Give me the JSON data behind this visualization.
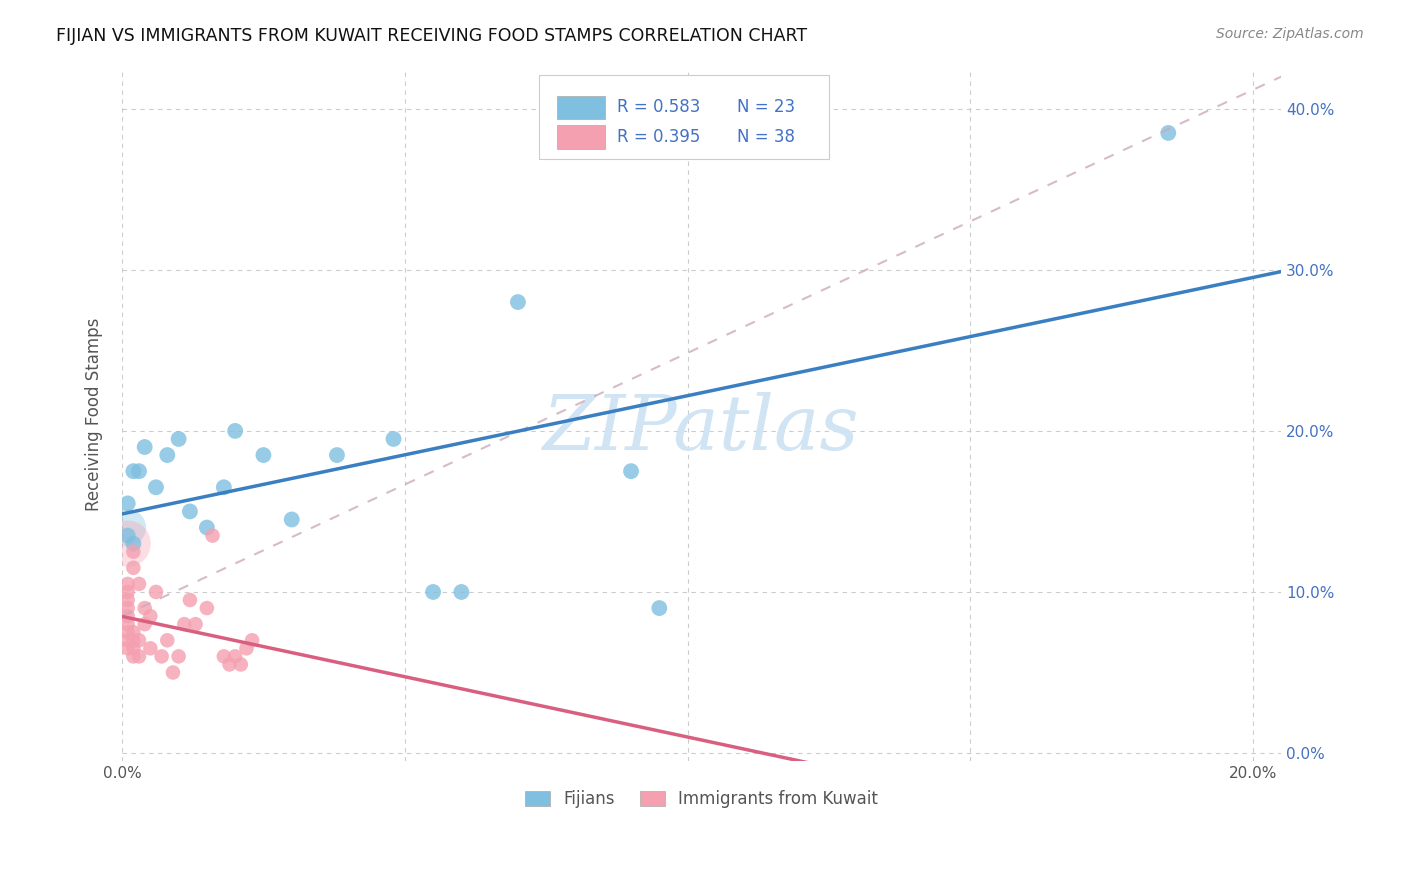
{
  "title": "FIJIAN VS IMMIGRANTS FROM KUWAIT RECEIVING FOOD STAMPS CORRELATION CHART",
  "source": "Source: ZipAtlas.com",
  "ylabel": "Receiving Food Stamps",
  "xlim": [
    0.0,
    0.205
  ],
  "ylim": [
    -0.005,
    0.425
  ],
  "xticks": [
    0.0,
    0.05,
    0.1,
    0.15,
    0.2
  ],
  "yticks": [
    0.0,
    0.1,
    0.2,
    0.3,
    0.4
  ],
  "xticklabels": [
    "0.0%",
    "",
    "",
    "",
    "20.0%"
  ],
  "yticklabels_right": [
    "0.0%",
    "10.0%",
    "20.0%",
    "30.0%",
    "40.0%"
  ],
  "fijian_color": "#7fbfdf",
  "kuwait_color": "#f4a0b0",
  "fijian_line_color": "#3a7fc1",
  "kuwait_line_color": "#d95f7f",
  "gray_dash_color": "#ccaabb",
  "watermark_color": "#d0e4f4",
  "legend_r1": "R = 0.583",
  "legend_n1": "N = 23",
  "legend_r2": "R = 0.395",
  "legend_n2": "N = 38",
  "legend_text_color": "#4472c4",
  "fijian_label": "Fijians",
  "kuwait_label": "Immigrants from Kuwait",
  "fijian_x": [
    0.001,
    0.001,
    0.002,
    0.002,
    0.003,
    0.004,
    0.006,
    0.008,
    0.01,
    0.012,
    0.015,
    0.018,
    0.02,
    0.025,
    0.03,
    0.038,
    0.048,
    0.055,
    0.06,
    0.07,
    0.09,
    0.095,
    0.185
  ],
  "fijian_y": [
    0.135,
    0.155,
    0.13,
    0.175,
    0.175,
    0.19,
    0.165,
    0.185,
    0.195,
    0.15,
    0.14,
    0.165,
    0.2,
    0.185,
    0.145,
    0.185,
    0.195,
    0.1,
    0.1,
    0.28,
    0.175,
    0.09,
    0.385
  ],
  "kuwait_x": [
    0.001,
    0.001,
    0.001,
    0.001,
    0.001,
    0.001,
    0.001,
    0.001,
    0.001,
    0.002,
    0.002,
    0.002,
    0.002,
    0.002,
    0.002,
    0.003,
    0.003,
    0.003,
    0.004,
    0.004,
    0.005,
    0.005,
    0.006,
    0.007,
    0.008,
    0.009,
    0.01,
    0.011,
    0.012,
    0.013,
    0.015,
    0.016,
    0.018,
    0.019,
    0.02,
    0.021,
    0.022,
    0.023
  ],
  "kuwait_y": [
    0.065,
    0.07,
    0.075,
    0.08,
    0.085,
    0.09,
    0.095,
    0.1,
    0.105,
    0.06,
    0.065,
    0.07,
    0.075,
    0.115,
    0.125,
    0.06,
    0.07,
    0.105,
    0.08,
    0.09,
    0.065,
    0.085,
    0.1,
    0.06,
    0.07,
    0.05,
    0.06,
    0.08,
    0.095,
    0.08,
    0.09,
    0.135,
    0.06,
    0.055,
    0.06,
    0.055,
    0.065,
    0.07
  ],
  "big_fijian_size": 700,
  "big_kuwait_size": 1100
}
